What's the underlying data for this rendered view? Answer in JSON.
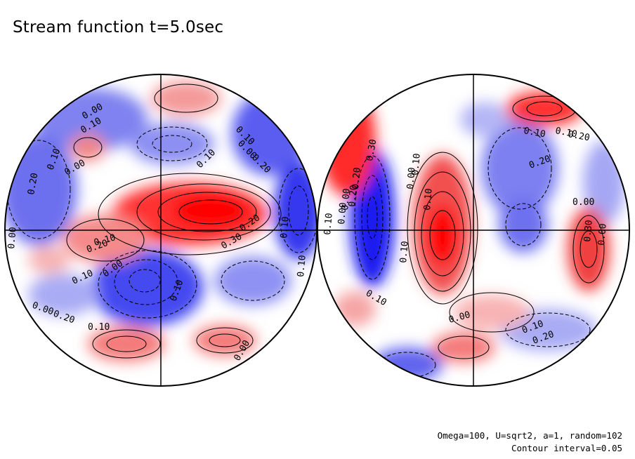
{
  "figure": {
    "title": "Stream function t=5.0sec",
    "params_line": "Omega=100, U=sqrt2, a=1, random=102",
    "interval_line": "Contour interval=0.05"
  },
  "colors": {
    "positive": "#ff0000",
    "negative": "#0000ff",
    "zero": "#ffffff",
    "line": "#000000"
  },
  "contour_labels": {
    "left": [
      "0.10",
      "0.00",
      "0.20",
      "0.10",
      "0.10",
      "0.00",
      "0.20",
      "0.10",
      "0.10",
      "0.20",
      "0.30",
      "0.20",
      "0.10",
      "0.00",
      "0.10",
      "0.20",
      "0.00",
      "0.10",
      "0.00",
      "0.10",
      "0.00",
      "0.00",
      "0.10"
    ],
    "right": [
      "0.10",
      "0.20",
      "0.10",
      "0.20",
      "0.00",
      "0.30",
      "0.10",
      "0.00",
      "0.10",
      "0.20",
      "0.30",
      "0.20",
      "0.10",
      "0.00",
      "0.10",
      "0.00",
      "0.10",
      "0.20",
      "0.00",
      "0.00",
      "0.10"
    ]
  }
}
